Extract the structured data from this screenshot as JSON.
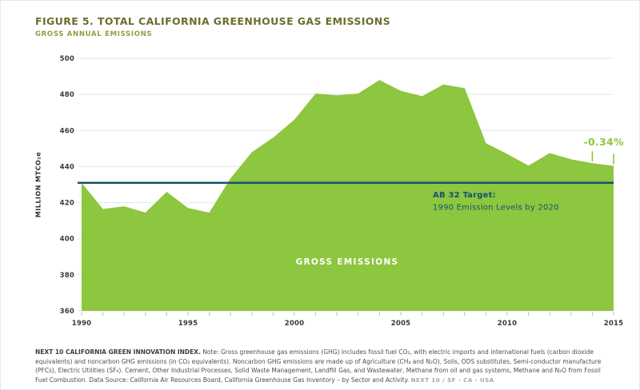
{
  "figure": {
    "title": "FIGURE 5. TOTAL CALIFORNIA GREENHOUSE GAS EMISSIONS",
    "subtitle": "GROSS ANNUAL EMISSIONS"
  },
  "chart_data": {
    "type": "area",
    "title": "FIGURE 5. TOTAL CALIFORNIA GREENHOUSE GAS EMISSIONS",
    "subtitle": "GROSS ANNUAL EMISSIONS",
    "ylabel": "MILLION MTCO₂e",
    "ylim": [
      360,
      500
    ],
    "ytick_step": 20,
    "grid": true,
    "x": [
      1990,
      1991,
      1992,
      1993,
      1994,
      1995,
      1996,
      1997,
      1998,
      1999,
      2000,
      2001,
      2002,
      2003,
      2004,
      2005,
      2006,
      2007,
      2008,
      2009,
      2010,
      2011,
      2012,
      2013,
      2014,
      2015
    ],
    "values": [
      431.0,
      416.5,
      418.0,
      414.5,
      426.0,
      417.0,
      414.5,
      433.5,
      448.0,
      456.0,
      466.0,
      480.5,
      479.5,
      480.5,
      488.0,
      482.0,
      479.0,
      485.5,
      483.5,
      453.0,
      447.0,
      440.5,
      447.5,
      444.0,
      441.9,
      440.4
    ],
    "xticks_labeled": [
      1990,
      1995,
      2000,
      2005,
      2010,
      2015
    ],
    "area_label": "GROSS EMISSIONS",
    "target_line": {
      "value": 431,
      "label_line1": "AB 32 Target:",
      "label_line2": "1990 Emission Levels by 2020"
    },
    "annotation": {
      "text": "-0.34%",
      "years": [
        2014,
        2015
      ]
    },
    "colors": {
      "area": "#8dc63f",
      "target_line": "#15536e",
      "target_text": "#15536e",
      "annotation": "#8dc63f",
      "area_label_text": "#ffffff",
      "axis_text": "#3a3a3a",
      "gridline": "#e6e6e6",
      "tick": "#b3b3b3"
    }
  },
  "footnote": {
    "lead": "NEXT 10 CALIFORNIA GREEN INNOVATION INDEX.",
    "note": "Note: Gross greenhouse gas emissions (GHG) includes fossil fuel CO₂, with electric imports and international fuels (carbon dioxide equivalents) and noncarbon GHG emissions (in CO₂ equivalents). Noncarbon GHG emissions are made up of Agriculture (CH₄ and N₂O), Soils, ODS substitutes, Semi-conductor manufacture (PFCs), Electric Utilities (SF₆). Cement, Other Industrial Processes, Solid Waste Management, Landfill Gas, and Wastewater, Methane from oil and gas systems, Methane and N₂O from Fossil Fuel Combustion. Data Source: California Air Resources Board, California Greenhouse Gas Inventory – by Sector and Activity.",
    "tag": "NEXT 10  /  SF - CA - USA"
  }
}
